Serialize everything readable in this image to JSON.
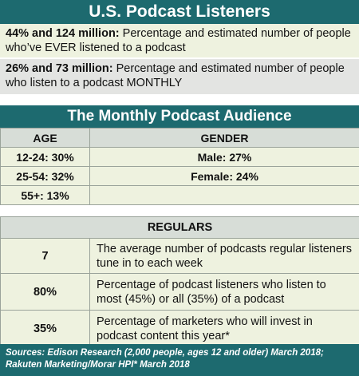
{
  "header": {
    "title": "U.S. Podcast Listeners"
  },
  "stats": [
    {
      "bold": "44% and 124 million:",
      "text": " Percentage and estimated number of people who’ve EVER listened to a podcast"
    },
    {
      "bold": "26% and 73 million:",
      "text": " Percentage and estimated number of people who listen to a podcast MONTHLY"
    }
  ],
  "monthly": {
    "title": "The Monthly Podcast Audience",
    "age_header": "AGE",
    "gender_header": "GENDER",
    "ages": [
      "12-24: 30%",
      "25-54: 32%",
      "55+: 13%"
    ],
    "genders": [
      "Male: 27%",
      "Female: 24%",
      ""
    ]
  },
  "regulars": {
    "header": "REGULARS",
    "rows": [
      {
        "value": "7",
        "description": "The average number of podcasts regular listeners tune in to each week"
      },
      {
        "value": "80%",
        "description": "Percentage of podcast listeners who listen to most (45%) or all (35%) of a podcast"
      },
      {
        "value": "35%",
        "description": "Percentage of marketers who will invest in podcast content this year*"
      }
    ]
  },
  "sources": "Sources: Edison Research (2,000 people, ages 12 and older) March 2018; Rakuten Marketing/Morar HPI* March 2018",
  "colors": {
    "teal": "#1d6a6f",
    "light_green": "#eef2df",
    "grey": "#e3e4e2"
  }
}
